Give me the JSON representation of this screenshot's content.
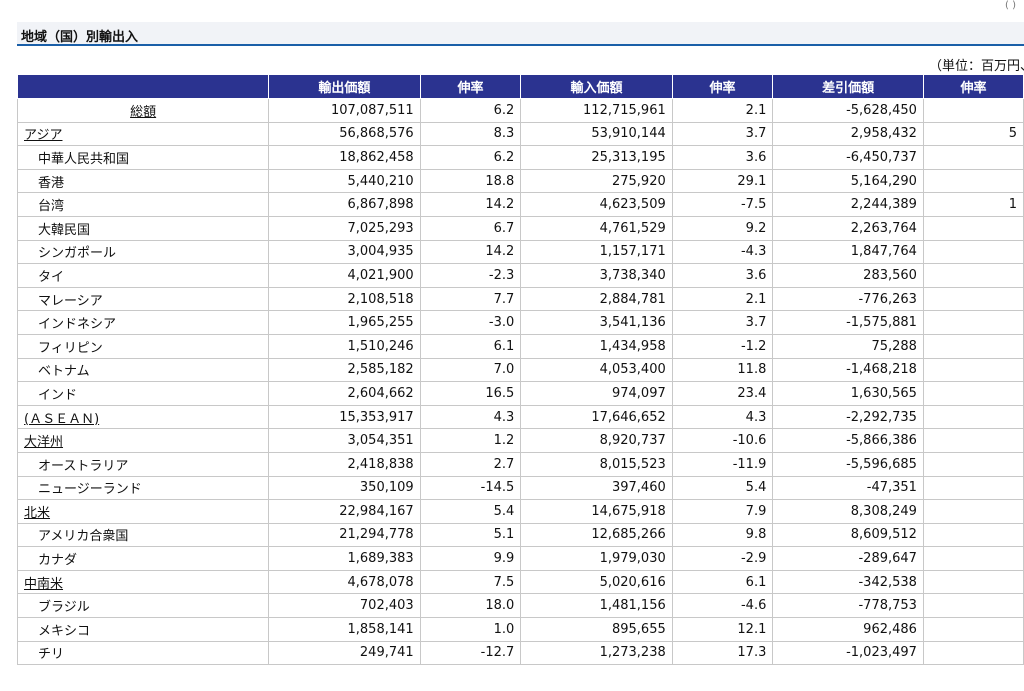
{
  "page": {
    "title": "地域（国）別輸出入",
    "unit_note": "（単位：百万円、",
    "corner_mark": "( )"
  },
  "table": {
    "headers": [
      "",
      "輸出価額",
      "伸率",
      "輸入価額",
      "伸率",
      "差引価額",
      "伸率"
    ],
    "rows": [
      {
        "kind": "total",
        "label": "総額",
        "export": "107,087,511",
        "export_rate": "6.2",
        "import": "112,715,961",
        "import_rate": "2.1",
        "balance": "-5,628,450",
        "balance_rate": ""
      },
      {
        "kind": "region",
        "label": "アジア",
        "export": "56,868,576",
        "export_rate": "8.3",
        "import": "53,910,144",
        "import_rate": "3.7",
        "balance": "2,958,432",
        "balance_rate": "5"
      },
      {
        "kind": "country",
        "label": "中華人民共和国",
        "export": "18,862,458",
        "export_rate": "6.2",
        "import": "25,313,195",
        "import_rate": "3.6",
        "balance": "-6,450,737",
        "balance_rate": ""
      },
      {
        "kind": "country",
        "label": "香港",
        "export": "5,440,210",
        "export_rate": "18.8",
        "import": "275,920",
        "import_rate": "29.1",
        "balance": "5,164,290",
        "balance_rate": ""
      },
      {
        "kind": "country",
        "label": "台湾",
        "export": "6,867,898",
        "export_rate": "14.2",
        "import": "4,623,509",
        "import_rate": "-7.5",
        "balance": "2,244,389",
        "balance_rate": "1"
      },
      {
        "kind": "country",
        "label": "大韓民国",
        "export": "7,025,293",
        "export_rate": "6.7",
        "import": "4,761,529",
        "import_rate": "9.2",
        "balance": "2,263,764",
        "balance_rate": ""
      },
      {
        "kind": "country",
        "label": "シンガポール",
        "export": "3,004,935",
        "export_rate": "14.2",
        "import": "1,157,171",
        "import_rate": "-4.3",
        "balance": "1,847,764",
        "balance_rate": ""
      },
      {
        "kind": "country",
        "label": "タイ",
        "export": "4,021,900",
        "export_rate": "-2.3",
        "import": "3,738,340",
        "import_rate": "3.6",
        "balance": "283,560",
        "balance_rate": ""
      },
      {
        "kind": "country",
        "label": "マレーシア",
        "export": "2,108,518",
        "export_rate": "7.7",
        "import": "2,884,781",
        "import_rate": "2.1",
        "balance": "-776,263",
        "balance_rate": ""
      },
      {
        "kind": "country",
        "label": "インドネシア",
        "export": "1,965,255",
        "export_rate": "-3.0",
        "import": "3,541,136",
        "import_rate": "3.7",
        "balance": "-1,575,881",
        "balance_rate": ""
      },
      {
        "kind": "country",
        "label": "フィリピン",
        "export": "1,510,246",
        "export_rate": "6.1",
        "import": "1,434,958",
        "import_rate": "-1.2",
        "balance": "75,288",
        "balance_rate": ""
      },
      {
        "kind": "country",
        "label": "ベトナム",
        "export": "2,585,182",
        "export_rate": "7.0",
        "import": "4,053,400",
        "import_rate": "11.8",
        "balance": "-1,468,218",
        "balance_rate": ""
      },
      {
        "kind": "country",
        "label": "インド",
        "export": "2,604,662",
        "export_rate": "16.5",
        "import": "974,097",
        "import_rate": "23.4",
        "balance": "1,630,565",
        "balance_rate": ""
      },
      {
        "kind": "region",
        "label": "(ＡＳＥＡＮ)",
        "export": "15,353,917",
        "export_rate": "4.3",
        "import": "17,646,652",
        "import_rate": "4.3",
        "balance": "-2,292,735",
        "balance_rate": ""
      },
      {
        "kind": "region",
        "label": "大洋州",
        "export": "3,054,351",
        "export_rate": "1.2",
        "import": "8,920,737",
        "import_rate": "-10.6",
        "balance": "-5,866,386",
        "balance_rate": ""
      },
      {
        "kind": "country",
        "label": "オーストラリア",
        "export": "2,418,838",
        "export_rate": "2.7",
        "import": "8,015,523",
        "import_rate": "-11.9",
        "balance": "-5,596,685",
        "balance_rate": ""
      },
      {
        "kind": "country",
        "label": "ニュージーランド",
        "export": "350,109",
        "export_rate": "-14.5",
        "import": "397,460",
        "import_rate": "5.4",
        "balance": "-47,351",
        "balance_rate": ""
      },
      {
        "kind": "region",
        "label": "北米",
        "export": "22,984,167",
        "export_rate": "5.4",
        "import": "14,675,918",
        "import_rate": "7.9",
        "balance": "8,308,249",
        "balance_rate": ""
      },
      {
        "kind": "country",
        "label": "アメリカ合衆国",
        "export": "21,294,778",
        "export_rate": "5.1",
        "import": "12,685,266",
        "import_rate": "9.8",
        "balance": "8,609,512",
        "balance_rate": ""
      },
      {
        "kind": "country",
        "label": "カナダ",
        "export": "1,689,383",
        "export_rate": "9.9",
        "import": "1,979,030",
        "import_rate": "-2.9",
        "balance": "-289,647",
        "balance_rate": ""
      },
      {
        "kind": "region",
        "label": "中南米",
        "export": "4,678,078",
        "export_rate": "7.5",
        "import": "5,020,616",
        "import_rate": "6.1",
        "balance": "-342,538",
        "balance_rate": ""
      },
      {
        "kind": "country",
        "label": "ブラジル",
        "export": "702,403",
        "export_rate": "18.0",
        "import": "1,481,156",
        "import_rate": "-4.6",
        "balance": "-778,753",
        "balance_rate": ""
      },
      {
        "kind": "country",
        "label": "メキシコ",
        "export": "1,858,141",
        "export_rate": "1.0",
        "import": "895,655",
        "import_rate": "12.1",
        "balance": "962,486",
        "balance_rate": ""
      },
      {
        "kind": "country",
        "label": "チリ",
        "export": "249,741",
        "export_rate": "-12.7",
        "import": "1,273,238",
        "import_rate": "17.3",
        "balance": "-1,023,497",
        "balance_rate": ""
      }
    ]
  }
}
